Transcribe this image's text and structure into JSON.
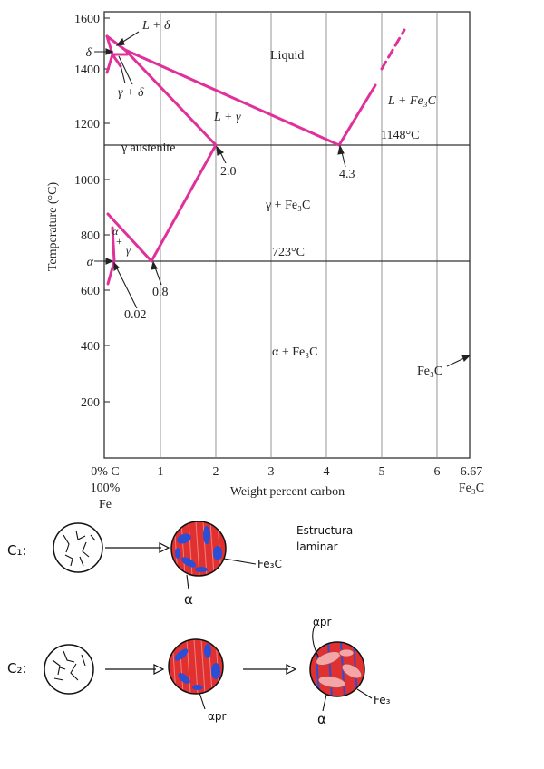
{
  "diagram": {
    "y_axis_label": "Temperature (°C)",
    "x_axis_label": "Weight percent carbon",
    "y_ticks": [
      "1600",
      "1400",
      "1200",
      "1000",
      "800",
      "600",
      "400",
      "200"
    ],
    "y_tick_values": [
      1600,
      1400,
      1200,
      1000,
      800,
      600,
      400,
      200
    ],
    "alpha_tick": "α",
    "delta_tick": "δ",
    "x_ticks": [
      "1",
      "2",
      "3",
      "4",
      "5",
      "6"
    ],
    "x_tick_values": [
      1,
      2,
      3,
      4,
      5,
      6
    ],
    "x_origin_label": "0% C",
    "x_origin_sub1": "100%",
    "x_origin_sub2": "Fe",
    "x_end_label": "6.67",
    "x_end_sub": "Fe₃C",
    "regions": {
      "liquid": "Liquid",
      "l_delta": "L + δ",
      "gamma_delta": "γ + δ",
      "l_gamma": "L + γ",
      "l_fe3c": "L + Fe₃C",
      "gamma_austenite": "γ austenite",
      "gamma_fe3c": "γ + Fe₃C",
      "alpha_gamma_1": "α",
      "alpha_gamma_2": "+",
      "alpha_gamma_3": "γ",
      "alpha_fe3c": "α + Fe₃C",
      "fe3c_pointer": "Fe₃C"
    },
    "annotations": {
      "eutectic_temp": "1148°C",
      "eutectoid_temp": "723°C",
      "c_2_0": "2.0",
      "c_4_3": "4.3",
      "c_0_8": "0.8",
      "c_0_02": "0.02"
    },
    "colors": {
      "phase_lines": "#e0309a",
      "axes": "#333333",
      "grid": "#777777"
    }
  },
  "sketches": {
    "c1_label": "C₁:",
    "c2_label": "C₂:",
    "c1_note_line1": "Estructura",
    "c1_note_line2": "laminar",
    "c1_fe3c_label": "Fe₃C",
    "c1_alpha_label": "α",
    "c2_alpha_pr_bottom": "αpr",
    "c2_alpha_pr_top": "αpr",
    "c2_alpha_label": "α",
    "c2_fe3_label": "Fe₃",
    "colors": {
      "red": "#e03030",
      "blue": "#2a4fd6",
      "pink": "#f0a0a0"
    }
  }
}
